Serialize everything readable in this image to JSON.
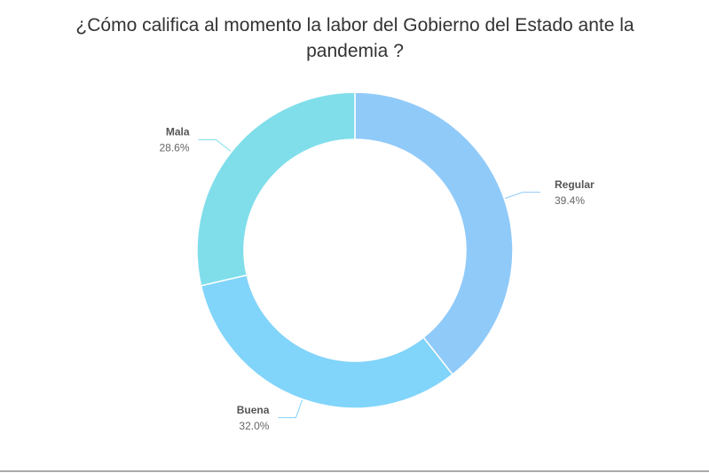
{
  "chart_data": {
    "type": "donut",
    "title": "¿Cómo califica al momento la labor del Gobierno del Estado ante la pandemia ?",
    "categories": [
      "Regular",
      "Buena",
      "Mala"
    ],
    "values": [
      39.4,
      32.0,
      28.6
    ],
    "value_labels": [
      "39.4%",
      "32.0%",
      "28.6%"
    ],
    "colors": [
      "#90caf9",
      "#81d4fa",
      "#80deea"
    ]
  }
}
